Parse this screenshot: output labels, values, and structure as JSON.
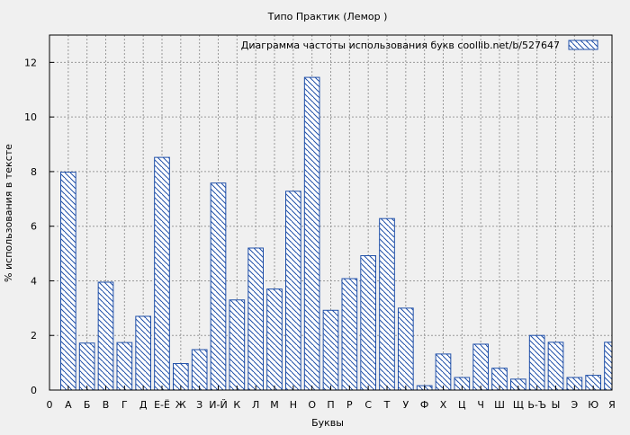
{
  "chart_data": {
    "type": "bar",
    "title": "Типо Практик (Лемор )",
    "xlabel": "Буквы",
    "ylabel": "% использования в тексте",
    "legend": {
      "label": "Диаграмма частоты использования букв  coollib.net/b/527647",
      "placement": "top-right"
    },
    "grid": true,
    "ylim": [
      0,
      13
    ],
    "yticks": [
      0,
      2,
      4,
      6,
      8,
      10,
      12
    ],
    "xticks": [
      "0",
      "А",
      "Б",
      "В",
      "Г",
      "Д",
      "Е-Ё",
      "Ж",
      "З",
      "И-Й",
      "К",
      "Л",
      "М",
      "Н",
      "О",
      "П",
      "Р",
      "С",
      "Т",
      "У",
      "Ф",
      "Х",
      "Ц",
      "Ч",
      "Ш",
      "Щ",
      "Ь-Ъ",
      "Ы",
      "Э",
      "Ю",
      "Я"
    ],
    "categories": [
      "А",
      "Б",
      "В",
      "Г",
      "Д",
      "Е-Ё",
      "Ж",
      "З",
      "И-Й",
      "К",
      "Л",
      "М",
      "Н",
      "О",
      "П",
      "Р",
      "С",
      "Т",
      "У",
      "Ф",
      "Х",
      "Ц",
      "Ч",
      "Ш",
      "Щ",
      "Ь-Ъ",
      "Ы",
      "Э",
      "Ю",
      "Я"
    ],
    "values": [
      7.98,
      1.72,
      3.95,
      1.74,
      2.7,
      8.52,
      0.97,
      1.48,
      7.58,
      3.3,
      5.2,
      3.7,
      7.28,
      11.45,
      2.92,
      4.08,
      4.92,
      6.28,
      3.0,
      0.16,
      1.32,
      0.46,
      1.68,
      0.8,
      0.4,
      2.0,
      1.75,
      0.46,
      0.54,
      1.75
    ]
  }
}
